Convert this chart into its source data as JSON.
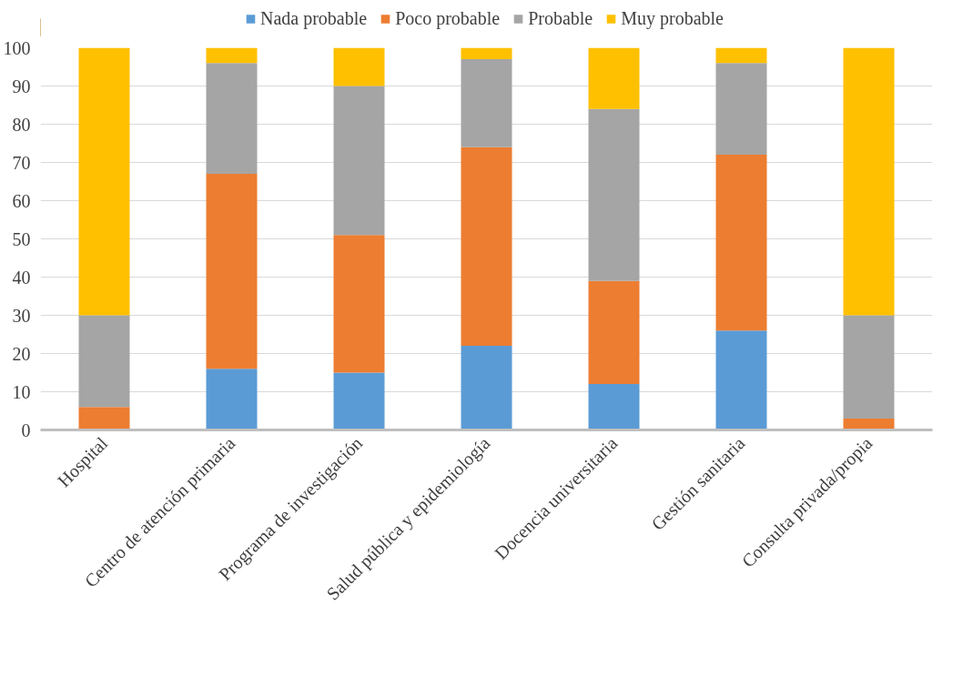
{
  "chart_data": {
    "type": "bar",
    "stacked": true,
    "categories": [
      "Hospital",
      "Centro de atención primaria",
      "Programa de investigación",
      "Salud pública y epidemiología",
      "Docencia universitaria",
      "Gestión sanitaria",
      "Consulta privada/propia"
    ],
    "series": [
      {
        "name": "Nada probable",
        "color": "#5b9bd5",
        "values": [
          0,
          16,
          15,
          22,
          12,
          26,
          0
        ]
      },
      {
        "name": "Poco probable",
        "color": "#ed7d31",
        "values": [
          6,
          51,
          36,
          52,
          27,
          46,
          3
        ]
      },
      {
        "name": "Probable",
        "color": "#a5a5a5",
        "values": [
          24,
          29,
          39,
          23,
          45,
          24,
          27
        ]
      },
      {
        "name": "Muy probable",
        "color": "#ffc000",
        "values": [
          70,
          4,
          10,
          3,
          16,
          4,
          70
        ]
      }
    ],
    "ylim": [
      0,
      100
    ],
    "yticks": [
      0,
      10,
      20,
      30,
      40,
      50,
      60,
      70,
      80,
      90,
      100
    ],
    "grid": "y",
    "legend": "top"
  }
}
